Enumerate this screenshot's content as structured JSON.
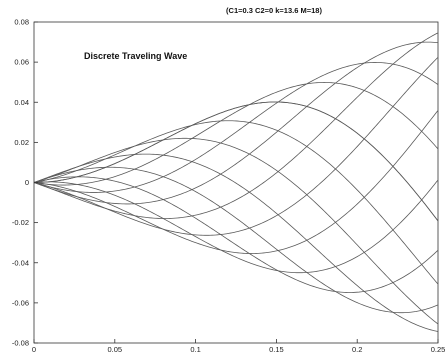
{
  "chart_data": {
    "type": "line",
    "title": "(C1=0.3 C2=0 k=13.6 M=18)",
    "annotation": "Discrete Traveling  Wave",
    "xlabel": "",
    "ylabel": "",
    "xlim": [
      0,
      0.25
    ],
    "ylim": [
      -0.08,
      0.08
    ],
    "x_ticks": [
      0,
      0.05,
      0.1,
      0.15,
      0.2,
      0.25
    ],
    "x_tick_labels": [
      "0",
      "0.05",
      "0.1",
      "0.15",
      "0.2",
      "0.25"
    ],
    "y_ticks": [
      -0.08,
      -0.06,
      -0.04,
      -0.02,
      0,
      0.02,
      0.04,
      0.06,
      0.08
    ],
    "y_tick_labels": [
      "-0.08",
      "-0.06",
      "-0.04",
      "-0.02",
      "0",
      "0.02",
      "0.04",
      "0.06",
      "0.08"
    ],
    "grid": false,
    "legend": "none",
    "line_color": "#5a5a5a",
    "axis_color": "#333333",
    "series_count": 14,
    "envelope_slope": 0.3,
    "wavenumber": 13.6,
    "x_samples": [
      0,
      0.01,
      0.02,
      0.03,
      0.04,
      0.05,
      0.06,
      0.07,
      0.08,
      0.09,
      0.1,
      0.11,
      0.12,
      0.13,
      0.14,
      0.15,
      0.16,
      0.17,
      0.18,
      0.19,
      0.2,
      0.21,
      0.22,
      0.23,
      0.24,
      0.25
    ],
    "series": [
      {
        "phase": 0.0
      },
      {
        "phase": 0.48332
      },
      {
        "phase": 0.96664
      },
      {
        "phase": 1.44996
      },
      {
        "phase": 1.93328
      },
      {
        "phase": 2.4166
      },
      {
        "phase": 2.89992
      },
      {
        "phase": 3.38324
      },
      {
        "phase": 3.86656
      },
      {
        "phase": 4.34988
      },
      {
        "phase": 4.8332
      },
      {
        "phase": 5.31652
      },
      {
        "phase": 5.79984
      },
      {
        "phase": 6.28316
      }
    ]
  }
}
